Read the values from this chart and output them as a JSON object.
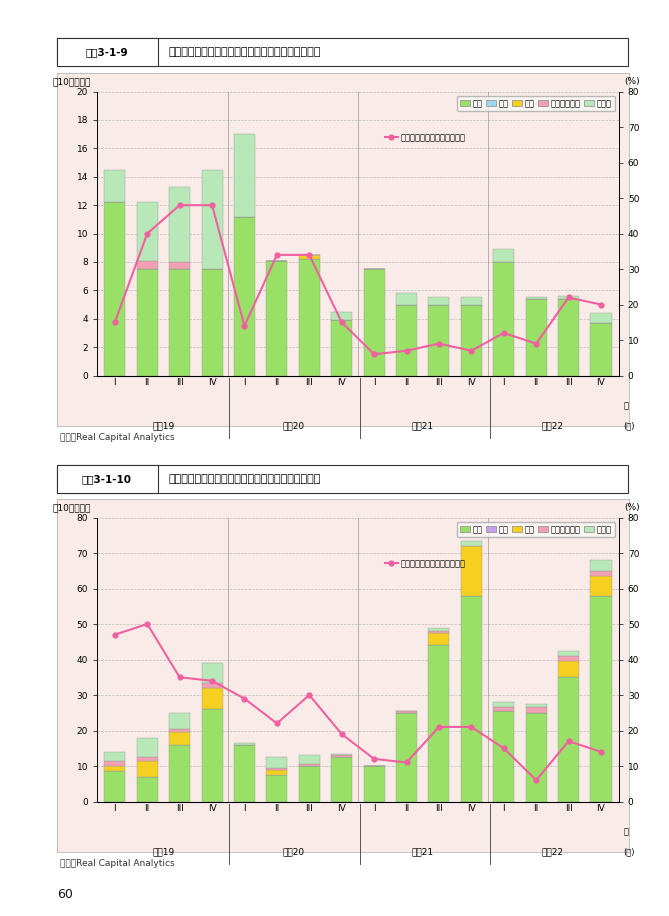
{
  "chart1": {
    "title_box": "図蠅3-1-9",
    "title_text": "日本への不動産投賄額とクロスボーダー比率の推移",
    "ylabel_left": "（10億ドル）",
    "ylabel_right": "(%)",
    "ylim_left": [
      0,
      20
    ],
    "ylim_right": [
      0,
      80
    ],
    "yticks_left": [
      0,
      2,
      4,
      6,
      8,
      10,
      12,
      14,
      16,
      18,
      20
    ],
    "yticks_right": [
      0,
      10,
      20,
      30,
      40,
      50,
      60,
      70,
      80
    ],
    "periods": [
      "平成19",
      "平成20",
      "平成21",
      "平成22"
    ],
    "quarters": [
      "I",
      "II",
      "III",
      "IV",
      "I",
      "II",
      "III",
      "IV",
      "I",
      "II",
      "III",
      "IV",
      "I",
      "II",
      "III",
      "IV"
    ],
    "legend_items": [
      "国内",
      "中国",
      "香港",
      "シンガポール",
      "その他"
    ],
    "legend_line": "クロスボーダー比率（右軸）",
    "bar_colors": [
      "#99e066",
      "#a0d8ef",
      "#f5d020",
      "#f4a0b4",
      "#b8e8b8"
    ],
    "line_color": "#f060a0",
    "bg_color": "#f9ece8",
    "source": "資料：Real Capital Analytics",
    "domestic": [
      12.2,
      7.5,
      7.5,
      7.5,
      11.2,
      8.1,
      8.2,
      3.9,
      7.5,
      5.0,
      5.0,
      5.0,
      8.0,
      5.4,
      5.4,
      3.7
    ],
    "china": [
      0.0,
      0.0,
      0.0,
      0.0,
      0.0,
      0.0,
      0.0,
      0.0,
      0.0,
      0.0,
      0.0,
      0.0,
      0.0,
      0.0,
      0.0,
      0.0
    ],
    "hongkong": [
      0.0,
      0.0,
      0.0,
      0.0,
      0.0,
      0.0,
      0.3,
      0.0,
      0.0,
      0.0,
      0.0,
      0.0,
      0.0,
      0.0,
      0.0,
      0.0
    ],
    "singapore": [
      0.0,
      0.6,
      0.5,
      0.0,
      0.0,
      0.0,
      0.0,
      0.0,
      0.0,
      0.0,
      0.0,
      0.0,
      0.0,
      0.0,
      0.0,
      0.0
    ],
    "other": [
      2.3,
      4.1,
      5.3,
      7.0,
      5.8,
      0.0,
      0.0,
      0.6,
      0.0,
      0.8,
      0.5,
      0.5,
      0.9,
      0.1,
      0.2,
      0.7
    ],
    "line": [
      15,
      40,
      48,
      48,
      14,
      34,
      34,
      15,
      6,
      7,
      9,
      7,
      12,
      9,
      22,
      20
    ]
  },
  "chart2": {
    "title_box": "図蠅3-1-10",
    "title_text": "中国への不動産投賄額とクロスボーダー比率の推移",
    "ylabel_left": "（10億ドル）",
    "ylabel_right": "(%)",
    "ylim_left": [
      0,
      80
    ],
    "ylim_right": [
      0,
      80
    ],
    "yticks_left": [
      0,
      10,
      20,
      30,
      40,
      50,
      60,
      70,
      80
    ],
    "yticks_right": [
      0,
      10,
      20,
      30,
      40,
      50,
      60,
      70,
      80
    ],
    "periods": [
      "平成19",
      "平成20",
      "平成21",
      "平成22"
    ],
    "quarters": [
      "I",
      "II",
      "III",
      "IV",
      "I",
      "II",
      "III",
      "IV",
      "I",
      "II",
      "III",
      "IV",
      "I",
      "II",
      "III",
      "IV"
    ],
    "legend_items": [
      "国内",
      "日本",
      "香港",
      "シンガポール",
      "その他"
    ],
    "legend_line": "クロスボーダー比率（右軸）",
    "bar_colors": [
      "#99e066",
      "#c8a0f0",
      "#f5d020",
      "#f4a0b4",
      "#b8e8b8"
    ],
    "line_color": "#f060a0",
    "bg_color": "#f9ece8",
    "source": "資料：Real Capital Analytics",
    "domestic": [
      8.5,
      7.0,
      16.0,
      26.0,
      16.0,
      7.5,
      10.0,
      12.5,
      10.0,
      25.0,
      44.0,
      58.0,
      25.5,
      25.0,
      35.0,
      58.0
    ],
    "japan": [
      0.0,
      0.0,
      0.0,
      0.0,
      0.0,
      0.0,
      0.0,
      0.0,
      0.0,
      0.0,
      0.0,
      0.0,
      0.0,
      0.0,
      0.0,
      0.0
    ],
    "hongkong": [
      1.5,
      4.5,
      3.5,
      6.0,
      0.0,
      1.5,
      0.0,
      0.0,
      0.0,
      0.0,
      3.5,
      14.0,
      0.0,
      0.0,
      4.5,
      5.5
    ],
    "singapore": [
      1.5,
      1.0,
      1.0,
      1.5,
      0.0,
      0.5,
      0.5,
      0.5,
      0.0,
      0.5,
      0.5,
      0.0,
      1.0,
      1.5,
      1.5,
      1.5
    ],
    "other": [
      2.5,
      5.5,
      4.5,
      5.5,
      0.5,
      3.0,
      2.5,
      0.5,
      0.0,
      0.0,
      1.0,
      1.5,
      1.5,
      1.0,
      1.5,
      3.0
    ],
    "line": [
      47,
      50,
      35,
      34,
      29,
      22,
      30,
      19,
      12,
      11,
      21,
      21,
      15,
      6,
      17,
      14
    ]
  },
  "page_num": "60"
}
